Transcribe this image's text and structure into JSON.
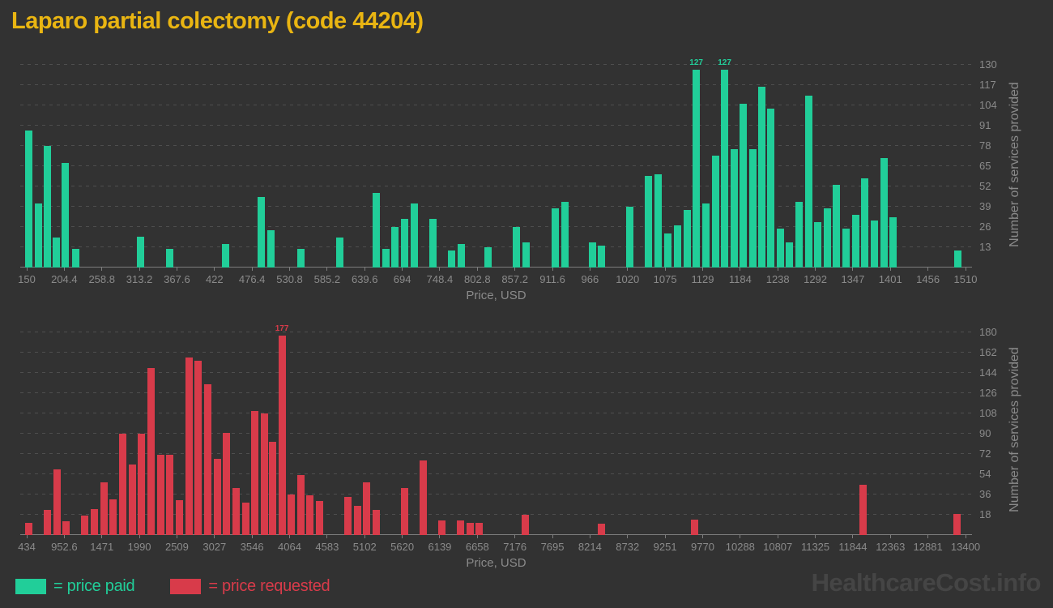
{
  "title": "Laparo partial colectomy (code 44204)",
  "watermark": "HealthcareCost.info",
  "colors": {
    "background": "#323232",
    "title": "#E9B512",
    "axis_text": "#8A8A8A",
    "grid": "#4E4E4E",
    "axis_line": "#7D7D7D",
    "price_paid": "#21CE99",
    "price_requested": "#D83B4A",
    "watermark": "#454545"
  },
  "legend": [
    {
      "label": "= price paid",
      "color": "#21CE99"
    },
    {
      "label": "= price requested",
      "color": "#D83B4A"
    }
  ],
  "chart_data": [
    {
      "type": "bar",
      "series": "price paid",
      "color_key": "price_paid",
      "xlabel": "Price, USD",
      "ylabel": "Number of services provided",
      "x_range": [
        150,
        1510
      ],
      "ylim": [
        0,
        132.6
      ],
      "grid": true,
      "legend_position": "bottom",
      "x_ticks": [
        "150",
        "204.4",
        "258.8",
        "313.2",
        "367.6",
        "422",
        "476.4",
        "530.8",
        "585.2",
        "639.6",
        "694",
        "748.4",
        "802.8",
        "857.2",
        "911.6",
        "966",
        "1020",
        "1075",
        "1129",
        "1184",
        "1238",
        "1292",
        "1347",
        "1401",
        "1456",
        "1510"
      ],
      "y_ticks": [
        13,
        26,
        39,
        52,
        65,
        78,
        91,
        104,
        117,
        130
      ],
      "bars": [
        [
          153,
          88
        ],
        [
          167,
          41
        ],
        [
          180,
          78
        ],
        [
          193,
          19
        ],
        [
          206,
          67
        ],
        [
          221,
          12
        ],
        [
          315,
          20
        ],
        [
          357,
          12
        ],
        [
          438,
          15
        ],
        [
          490,
          45
        ],
        [
          504,
          24
        ],
        [
          547,
          12
        ],
        [
          603,
          19
        ],
        [
          656,
          48
        ],
        [
          670,
          12
        ],
        [
          683,
          26
        ],
        [
          697,
          31
        ],
        [
          711,
          41
        ],
        [
          738,
          31
        ],
        [
          765,
          11
        ],
        [
          779,
          15
        ],
        [
          818,
          13
        ],
        [
          859,
          26
        ],
        [
          873,
          16
        ],
        [
          916,
          38
        ],
        [
          930,
          42
        ],
        [
          970,
          16
        ],
        [
          983,
          14
        ],
        [
          1024,
          39
        ],
        [
          1051,
          59
        ],
        [
          1065,
          60
        ],
        [
          1079,
          22
        ],
        [
          1093,
          27
        ],
        [
          1107,
          37
        ],
        [
          1120,
          127,
          "127"
        ],
        [
          1134,
          41
        ],
        [
          1148,
          72
        ],
        [
          1161,
          127,
          "127"
        ],
        [
          1175,
          76
        ],
        [
          1188,
          105
        ],
        [
          1202,
          76
        ],
        [
          1215,
          116
        ],
        [
          1228,
          102
        ],
        [
          1242,
          25
        ],
        [
          1255,
          16
        ],
        [
          1269,
          42
        ],
        [
          1283,
          110
        ],
        [
          1296,
          29
        ],
        [
          1310,
          38
        ],
        [
          1323,
          53
        ],
        [
          1337,
          25
        ],
        [
          1351,
          34
        ],
        [
          1364,
          57
        ],
        [
          1378,
          30
        ],
        [
          1392,
          70
        ],
        [
          1405,
          32
        ],
        [
          1499,
          11
        ]
      ]
    },
    {
      "type": "bar",
      "series": "price requested",
      "color_key": "price_requested",
      "xlabel": "Price, USD",
      "ylabel": "Number of services provided",
      "x_range": [
        434,
        13400
      ],
      "ylim": [
        0,
        187.2
      ],
      "grid": true,
      "legend_position": "bottom",
      "x_ticks": [
        "434",
        "952.6",
        "1471",
        "1990",
        "2509",
        "3027",
        "3546",
        "4064",
        "4583",
        "5102",
        "5620",
        "6139",
        "6658",
        "7176",
        "7695",
        "8214",
        "8732",
        "9251",
        "9770",
        "10288",
        "10807",
        "11325",
        "11844",
        "12363",
        "12881",
        "13400"
      ],
      "y_ticks": [
        18,
        36,
        54,
        72,
        90,
        108,
        126,
        144,
        162,
        180
      ],
      "bars": [
        [
          462,
          11
        ],
        [
          719,
          22
        ],
        [
          853,
          58
        ],
        [
          976,
          12
        ],
        [
          1238,
          17
        ],
        [
          1367,
          23
        ],
        [
          1501,
          47
        ],
        [
          1629,
          32
        ],
        [
          1758,
          90
        ],
        [
          1892,
          63
        ],
        [
          2020,
          90
        ],
        [
          2149,
          148
        ],
        [
          2283,
          71
        ],
        [
          2411,
          71
        ],
        [
          2540,
          31
        ],
        [
          2674,
          158
        ],
        [
          2802,
          155
        ],
        [
          2930,
          134
        ],
        [
          3064,
          68
        ],
        [
          3193,
          91
        ],
        [
          3321,
          42
        ],
        [
          3455,
          29
        ],
        [
          3584,
          110
        ],
        [
          3712,
          108
        ],
        [
          3824,
          83
        ],
        [
          3959,
          177,
          "177"
        ],
        [
          4086,
          36
        ],
        [
          4217,
          53
        ],
        [
          4347,
          35
        ],
        [
          4477,
          30
        ],
        [
          4868,
          34
        ],
        [
          4999,
          26
        ],
        [
          5129,
          47
        ],
        [
          5260,
          22
        ],
        [
          5651,
          42
        ],
        [
          5906,
          66
        ],
        [
          6162,
          13
        ],
        [
          6425,
          13
        ],
        [
          6555,
          11
        ],
        [
          6686,
          11
        ],
        [
          7320,
          18
        ],
        [
          8368,
          10
        ],
        [
          9660,
          14
        ],
        [
          11990,
          45
        ],
        [
          13277,
          19
        ]
      ]
    }
  ]
}
